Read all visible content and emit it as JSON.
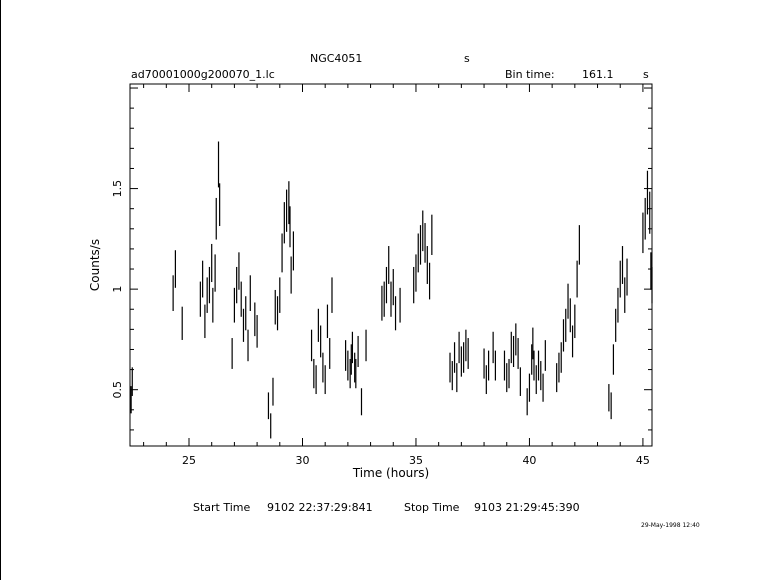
{
  "header": {
    "object": "NGC4051",
    "unit_marker": "s",
    "filename": "ad70001000g200070_1.lc",
    "bin_label": "Bin time:",
    "bin_value": "161.1",
    "bin_unit": "s"
  },
  "footer": {
    "start_label": "Start Time",
    "start_value": "9102  22:37:29:841",
    "stop_label": "Stop Time",
    "stop_value": "9103  21:29:45:390",
    "plot_stamp": "29-May-1998 12:40"
  },
  "chart_data": {
    "type": "scatter",
    "xlabel": "Time (hours)",
    "ylabel": "Counts/s",
    "xlim": [
      22.4,
      45.4
    ],
    "ylim": [
      0.22,
      2.02
    ],
    "xticks": [
      25,
      30,
      35,
      40,
      45
    ],
    "yticks": [
      0.5,
      1,
      1.5
    ],
    "xtick_labels": [
      "25",
      "30",
      "35",
      "40",
      "45"
    ],
    "ytick_labels": [
      "0.5",
      "1",
      "1.5"
    ],
    "grid": false,
    "series": [
      {
        "points": [
          [
            22.45,
            0.45
          ],
          [
            22.5,
            0.54
          ],
          [
            24.3,
            0.98
          ],
          [
            24.4,
            1.1
          ],
          [
            24.7,
            0.83
          ],
          [
            25.5,
            0.95
          ],
          [
            25.6,
            1.05
          ],
          [
            25.7,
            0.84
          ],
          [
            25.8,
            0.97
          ],
          [
            25.9,
            1.02
          ],
          [
            26.0,
            1.13
          ],
          [
            26.05,
            0.92
          ],
          [
            26.15,
            1.08
          ],
          [
            26.2,
            1.35
          ],
          [
            26.3,
            1.62
          ],
          [
            26.35,
            1.42
          ],
          [
            26.9,
            0.68
          ],
          [
            27.0,
            0.92
          ],
          [
            27.1,
            1.02
          ],
          [
            27.2,
            1.09
          ],
          [
            27.3,
            0.95
          ],
          [
            27.4,
            0.82
          ],
          [
            27.5,
            0.88
          ],
          [
            27.6,
            0.72
          ],
          [
            27.7,
            0.98
          ],
          [
            27.9,
            0.85
          ],
          [
            28.0,
            0.79
          ],
          [
            28.5,
            0.42
          ],
          [
            28.6,
            0.32
          ],
          [
            28.7,
            0.49
          ],
          [
            28.8,
            0.91
          ],
          [
            28.9,
            0.88
          ],
          [
            29.0,
            0.97
          ],
          [
            29.1,
            1.18
          ],
          [
            29.2,
            1.33
          ],
          [
            29.3,
            1.39
          ],
          [
            29.4,
            1.43
          ],
          [
            29.45,
            1.31
          ],
          [
            29.5,
            1.07
          ],
          [
            29.6,
            1.19
          ],
          [
            30.4,
            0.72
          ],
          [
            30.5,
            0.58
          ],
          [
            30.6,
            0.55
          ],
          [
            30.7,
            0.82
          ],
          [
            30.8,
            0.74
          ],
          [
            30.9,
            0.61
          ],
          [
            31.0,
            0.55
          ],
          [
            31.1,
            0.84
          ],
          [
            31.2,
            0.68
          ],
          [
            31.3,
            0.97
          ],
          [
            31.9,
            0.67
          ],
          [
            32.0,
            0.62
          ],
          [
            32.1,
            0.58
          ],
          [
            32.15,
            0.65
          ],
          [
            32.2,
            0.71
          ],
          [
            32.3,
            0.61
          ],
          [
            32.35,
            0.58
          ],
          [
            32.45,
            0.69
          ],
          [
            32.6,
            0.44
          ],
          [
            32.8,
            0.72
          ],
          [
            33.5,
            0.93
          ],
          [
            33.6,
            0.95
          ],
          [
            33.7,
            1.02
          ],
          [
            33.8,
            1.12
          ],
          [
            33.9,
            0.95
          ],
          [
            34.0,
            1.01
          ],
          [
            34.1,
            0.88
          ],
          [
            34.3,
            0.92
          ],
          [
            34.9,
            1.02
          ],
          [
            35.0,
            1.08
          ],
          [
            35.1,
            1.18
          ],
          [
            35.2,
            1.22
          ],
          [
            35.3,
            1.29
          ],
          [
            35.4,
            1.23
          ],
          [
            35.5,
            1.12
          ],
          [
            35.6,
            1.04
          ],
          [
            35.7,
            1.27
          ],
          [
            36.5,
            0.61
          ],
          [
            36.6,
            0.57
          ],
          [
            36.7,
            0.66
          ],
          [
            36.8,
            0.56
          ],
          [
            36.9,
            0.71
          ],
          [
            37.0,
            0.64
          ],
          [
            37.1,
            0.66
          ],
          [
            37.2,
            0.72
          ],
          [
            37.3,
            0.68
          ],
          [
            38.0,
            0.63
          ],
          [
            38.1,
            0.55
          ],
          [
            38.2,
            0.62
          ],
          [
            38.4,
            0.71
          ],
          [
            38.5,
            0.62
          ],
          [
            38.9,
            0.62
          ],
          [
            39.0,
            0.56
          ],
          [
            39.1,
            0.58
          ],
          [
            39.2,
            0.71
          ],
          [
            39.3,
            0.69
          ],
          [
            39.4,
            0.75
          ],
          [
            39.5,
            0.68
          ],
          [
            39.6,
            0.54
          ],
          [
            39.9,
            0.44
          ],
          [
            40.0,
            0.51
          ],
          [
            40.1,
            0.65
          ],
          [
            40.15,
            0.73
          ],
          [
            40.2,
            0.62
          ],
          [
            40.3,
            0.55
          ],
          [
            40.4,
            0.62
          ],
          [
            40.5,
            0.57
          ],
          [
            40.6,
            0.51
          ],
          [
            40.7,
            0.67
          ],
          [
            41.2,
            0.56
          ],
          [
            41.3,
            0.61
          ],
          [
            41.4,
            0.66
          ],
          [
            41.5,
            0.77
          ],
          [
            41.6,
            0.82
          ],
          [
            41.7,
            0.94
          ],
          [
            41.8,
            0.87
          ],
          [
            41.9,
            0.74
          ],
          [
            42.0,
            0.84
          ],
          [
            42.1,
            1.05
          ],
          [
            42.2,
            1.22
          ],
          [
            43.5,
            0.46
          ],
          [
            43.6,
            0.42
          ],
          [
            43.7,
            0.65
          ],
          [
            43.8,
            0.82
          ],
          [
            43.9,
            0.92
          ],
          [
            44.0,
            1.05
          ],
          [
            44.1,
            1.12
          ],
          [
            44.2,
            0.97
          ],
          [
            44.3,
            1.06
          ],
          [
            45.0,
            1.28
          ],
          [
            45.1,
            1.35
          ],
          [
            45.2,
            1.48
          ],
          [
            45.3,
            1.38
          ],
          [
            45.35,
            1.09
          ],
          [
            45.4,
            1.02
          ],
          [
            45.45,
            1.21
          ],
          [
            45.5,
            1.42
          ],
          [
            45.55,
            1.58
          ]
        ]
      }
    ]
  }
}
